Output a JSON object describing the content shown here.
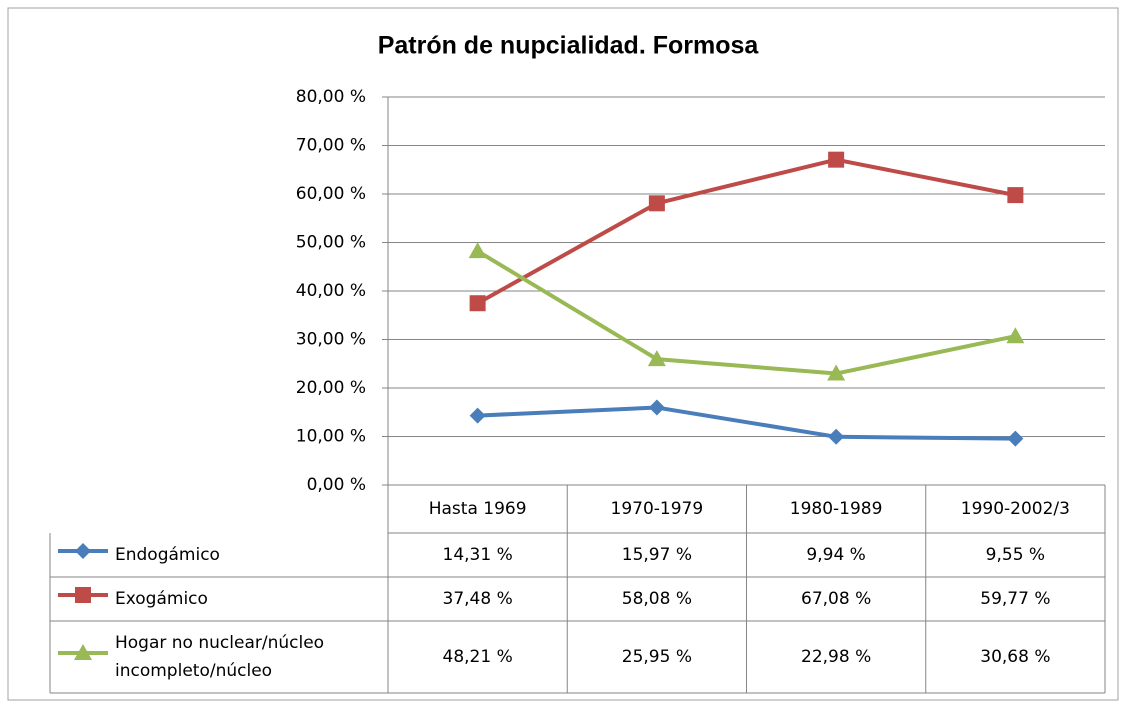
{
  "chart_data": {
    "type": "line",
    "title": "Patrón de nupcialidad. Formosa",
    "categories": [
      "Hasta 1969",
      "1970-1979",
      "1980-1989",
      "1990-2002/3"
    ],
    "series": [
      {
        "name": "Endogámico",
        "color": "#4a7ebb",
        "marker": "diamond",
        "values": [
          14.31,
          15.97,
          9.94,
          9.55
        ],
        "value_labels": [
          "14,31 %",
          "15,97 %",
          "9,94 %",
          "9,55 %"
        ]
      },
      {
        "name": "Exogámico",
        "color": "#be4b48",
        "marker": "square",
        "values": [
          37.48,
          58.08,
          67.08,
          59.77
        ],
        "value_labels": [
          "37,48 %",
          "58,08 %",
          "67,08 %",
          "59,77 %"
        ]
      },
      {
        "name": "Hogar no nuclear/núcleo incompleto/núcleo",
        "color": "#98b954",
        "marker": "triangle",
        "values": [
          48.21,
          25.95,
          22.98,
          30.68
        ],
        "value_labels": [
          "48,21 %",
          "25,95 %",
          "22,98 %",
          "30,68 %"
        ]
      }
    ],
    "ylim": [
      0,
      80
    ],
    "yticks": [
      {
        "value": 0,
        "label": "0,00 %"
      },
      {
        "value": 10,
        "label": "10,00 %"
      },
      {
        "value": 20,
        "label": "20,00 %"
      },
      {
        "value": 30,
        "label": "30,00 %"
      },
      {
        "value": 40,
        "label": "40,00 %"
      },
      {
        "value": 50,
        "label": "50,00 %"
      },
      {
        "value": 60,
        "label": "60,00 %"
      },
      {
        "value": 70,
        "label": "70,00 %"
      },
      {
        "value": 80,
        "label": "80,00 %"
      }
    ],
    "grid": true
  }
}
